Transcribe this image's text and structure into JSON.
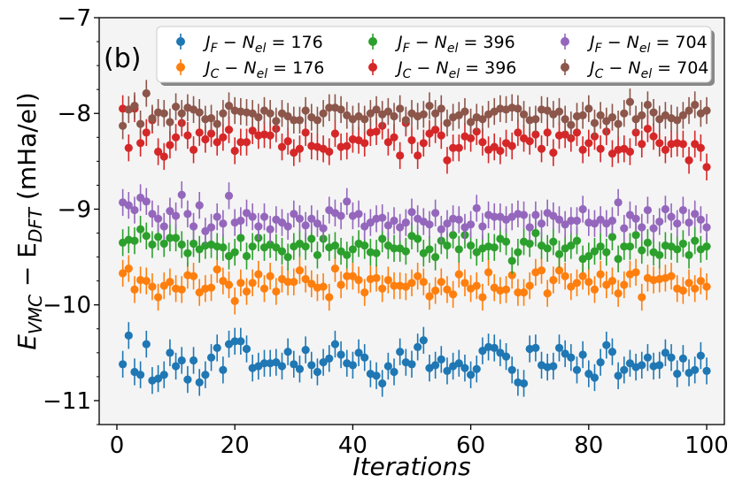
{
  "chart_data": {
    "type": "scatter",
    "panel_label": "(b)",
    "xlabel": "Iterations",
    "ylabel_main": "E",
    "ylabel_sub1": "VMC",
    "ylabel_mid": " − E",
    "ylabel_sub2": "DFT",
    "ylabel_unit": " (mHa/el)",
    "xlim": [
      -3,
      103
    ],
    "ylim": [
      -11.25,
      -7.0
    ],
    "xticks": [
      0,
      20,
      40,
      60,
      80,
      100
    ],
    "xtick_labels": [
      "0",
      "20",
      "40",
      "60",
      "80",
      "100"
    ],
    "yticks": [
      -11,
      -10,
      -9,
      -8,
      -7
    ],
    "ytick_labels": [
      "−11",
      "−10",
      "−9",
      "−8",
      "−7"
    ],
    "legend_position": "top",
    "error_bar": 0.14,
    "series": [
      {
        "name": "J_F − N_el = 176",
        "prefix": "J",
        "sub": "F",
        "suffix": " − N",
        "sub2": "el",
        "value": " = 176",
        "color": "#1f77b4",
        "values": [
          -10.62,
          -10.32,
          -10.7,
          -10.73,
          -10.41,
          -10.79,
          -10.77,
          -10.73,
          -10.5,
          -10.64,
          -10.58,
          -10.78,
          -10.58,
          -10.81,
          -10.73,
          -10.55,
          -10.45,
          -10.68,
          -10.41,
          -10.38,
          -10.38,
          -10.46,
          -10.66,
          -10.64,
          -10.61,
          -10.61,
          -10.6,
          -10.64,
          -10.49,
          -10.62,
          -10.67,
          -10.47,
          -10.63,
          -10.7,
          -10.6,
          -10.56,
          -10.41,
          -10.52,
          -10.61,
          -10.63,
          -10.5,
          -10.55,
          -10.72,
          -10.74,
          -10.82,
          -10.64,
          -10.7,
          -10.49,
          -10.6,
          -10.62,
          -10.44,
          -10.37,
          -10.66,
          -10.63,
          -10.57,
          -10.69,
          -10.64,
          -10.61,
          -10.66,
          -10.73,
          -10.67,
          -10.48,
          -10.44,
          -10.45,
          -10.5,
          -10.54,
          -10.68,
          -10.81,
          -10.82,
          -10.46,
          -10.45,
          -10.63,
          -10.65,
          -10.64,
          -10.45,
          -10.51,
          -10.55,
          -10.68,
          -10.52,
          -10.72,
          -10.76,
          -10.6,
          -10.42,
          -10.49,
          -10.74,
          -10.68,
          -10.61,
          -10.65,
          -10.63,
          -10.55,
          -10.64,
          -10.63,
          -10.5,
          -10.55,
          -10.72,
          -10.56,
          -10.71,
          -10.68,
          -10.53,
          -10.69
        ]
      },
      {
        "name": "J_C − N_el = 176",
        "prefix": "J",
        "sub": "C",
        "suffix": " − N",
        "sub2": "el",
        "value": " = 176",
        "color": "#ff7f0e",
        "values": [
          -9.67,
          -9.62,
          -9.84,
          -9.74,
          -9.75,
          -9.81,
          -9.92,
          -9.8,
          -9.76,
          -9.83,
          -9.84,
          -9.69,
          -9.7,
          -9.87,
          -9.83,
          -9.82,
          -9.63,
          -9.75,
          -9.79,
          -9.96,
          -9.77,
          -9.86,
          -9.77,
          -9.68,
          -9.83,
          -9.7,
          -9.86,
          -9.73,
          -9.76,
          -9.76,
          -9.64,
          -9.73,
          -9.78,
          -9.82,
          -9.81,
          -9.92,
          -9.62,
          -9.79,
          -9.7,
          -9.7,
          -9.74,
          -9.87,
          -9.73,
          -9.72,
          -9.83,
          -9.74,
          -9.8,
          -9.8,
          -9.81,
          -9.77,
          -9.7,
          -9.76,
          -9.91,
          -9.85,
          -9.76,
          -9.84,
          -9.89,
          -9.68,
          -9.77,
          -9.83,
          -9.8,
          -9.92,
          -9.66,
          -9.82,
          -9.85,
          -9.84,
          -9.69,
          -9.87,
          -9.87,
          -9.8,
          -9.66,
          -9.64,
          -9.88,
          -9.74,
          -9.64,
          -9.7,
          -9.81,
          -9.77,
          -9.7,
          -9.76,
          -9.84,
          -9.68,
          -9.79,
          -9.75,
          -9.88,
          -9.79,
          -9.68,
          -9.66,
          -9.92,
          -9.72,
          -9.74,
          -9.73,
          -9.72,
          -9.7,
          -9.83,
          -9.85,
          -9.77,
          -9.83,
          -9.75,
          -9.81
        ]
      },
      {
        "name": "J_F − N_el = 396",
        "prefix": "J",
        "sub": "F",
        "suffix": " − N",
        "sub2": "el",
        "value": " = 396",
        "color": "#2ca02c",
        "values": [
          -9.35,
          -9.32,
          -9.33,
          -9.21,
          -9.28,
          -9.37,
          -9.29,
          -9.36,
          -9.3,
          -9.3,
          -9.37,
          -9.46,
          -9.36,
          -9.42,
          -9.38,
          -9.37,
          -9.39,
          -9.4,
          -9.49,
          -9.45,
          -9.3,
          -9.49,
          -9.39,
          -9.3,
          -9.4,
          -9.37,
          -9.4,
          -9.44,
          -9.5,
          -9.39,
          -9.36,
          -9.39,
          -9.31,
          -9.48,
          -9.31,
          -9.4,
          -9.38,
          -9.44,
          -9.48,
          -9.42,
          -9.36,
          -9.38,
          -9.45,
          -9.46,
          -9.31,
          -9.38,
          -9.41,
          -9.41,
          -9.44,
          -9.28,
          -9.31,
          -9.46,
          -9.42,
          -9.5,
          -9.33,
          -9.38,
          -9.27,
          -9.42,
          -9.27,
          -9.38,
          -9.45,
          -9.41,
          -9.39,
          -9.4,
          -9.31,
          -9.34,
          -9.54,
          -9.45,
          -9.34,
          -9.36,
          -9.25,
          -9.38,
          -9.41,
          -9.34,
          -9.47,
          -9.41,
          -9.38,
          -9.33,
          -9.52,
          -9.49,
          -9.44,
          -9.39,
          -9.45,
          -9.29,
          -9.52,
          -9.39,
          -9.39,
          -9.27,
          -9.43,
          -9.35,
          -9.45,
          -9.48,
          -9.38,
          -9.39,
          -9.42,
          -9.36,
          -9.48,
          -9.33,
          -9.42,
          -9.39
        ]
      },
      {
        "name": "J_C − N_el = 396",
        "prefix": "J",
        "sub": "C",
        "suffix": " − N",
        "sub2": "el",
        "value": " = 396",
        "color": "#d62728",
        "values": [
          -7.95,
          -8.36,
          -7.95,
          -8.31,
          -8.2,
          -8.07,
          -8.4,
          -8.45,
          -8.33,
          -8.25,
          -8.1,
          -8.23,
          -8.38,
          -8.2,
          -8.27,
          -8.21,
          -8.3,
          -8.25,
          -8.17,
          -8.39,
          -8.3,
          -8.3,
          -8.18,
          -8.23,
          -8.22,
          -8.23,
          -8.16,
          -8.35,
          -8.29,
          -8.41,
          -8.37,
          -8.2,
          -8.34,
          -8.35,
          -8.37,
          -8.4,
          -8.21,
          -8.35,
          -8.34,
          -8.27,
          -8.28,
          -8.31,
          -8.2,
          -8.19,
          -8.13,
          -8.3,
          -8.25,
          -8.44,
          -8.1,
          -8.28,
          -8.44,
          -8.31,
          -8.21,
          -8.17,
          -8.23,
          -8.49,
          -8.36,
          -8.36,
          -8.24,
          -8.26,
          -8.19,
          -8.3,
          -8.38,
          -8.35,
          -8.39,
          -8.31,
          -8.34,
          -8.2,
          -8.26,
          -8.29,
          -8.22,
          -8.37,
          -8.2,
          -8.41,
          -8.23,
          -8.22,
          -8.26,
          -8.2,
          -8.38,
          -8.31,
          -8.24,
          -8.37,
          -8.19,
          -8.42,
          -8.38,
          -8.37,
          -8.4,
          -8.2,
          -8.32,
          -8.16,
          -8.24,
          -8.31,
          -8.38,
          -8.32,
          -8.31,
          -8.32,
          -8.49,
          -8.32,
          -8.36,
          -8.56
        ]
      },
      {
        "name": "J_F − N_el = 704",
        "prefix": "J",
        "sub": "F",
        "suffix": " − N",
        "sub2": "el",
        "value": " = 704",
        "color": "#9467bd",
        "values": [
          -8.93,
          -8.96,
          -9.01,
          -8.88,
          -8.92,
          -9.05,
          -9.1,
          -9.18,
          -9.02,
          -9.07,
          -8.85,
          -9.05,
          -9.18,
          -8.96,
          -9.23,
          -9.19,
          -9.08,
          -9.15,
          -8.86,
          -9.14,
          -9.12,
          -9.04,
          -9.08,
          -9.18,
          -9.08,
          -9.21,
          -9.11,
          -9.14,
          -9.18,
          -9.05,
          -9.1,
          -9.17,
          -9.1,
          -9.15,
          -9.2,
          -9.01,
          -9.04,
          -9.07,
          -8.92,
          -9.07,
          -9.05,
          -9.18,
          -9.14,
          -9.1,
          -9.09,
          -9.17,
          -9.12,
          -9.19,
          -9.14,
          -9.03,
          -9.1,
          -9.13,
          -9.16,
          -9.04,
          -9.21,
          -9.15,
          -9.1,
          -9.11,
          -9.19,
          -9.16,
          -8.99,
          -9.18,
          -9.06,
          -9.08,
          -9.08,
          -9.11,
          -9.08,
          -9.05,
          -9.06,
          -9.19,
          -9.06,
          -9.15,
          -9.04,
          -9.07,
          -9.11,
          -9.16,
          -9.12,
          -9.12,
          -9.0,
          -9.14,
          -9.15,
          -9.11,
          -9.15,
          -9.12,
          -8.93,
          -9.2,
          -9.06,
          -9.1,
          -9.19,
          -9.01,
          -9.2,
          -9.13,
          -9.0,
          -9.08,
          -9.15,
          -9.01,
          -9.14,
          -9.05,
          -9.11,
          -9.19
        ]
      },
      {
        "name": "J_C − N_el = 704",
        "prefix": "J",
        "sub": "C",
        "suffix": " − N",
        "sub2": "el",
        "value": " = 704",
        "color": "#8c564b",
        "values": [
          -8.13,
          -7.96,
          -7.92,
          -8.11,
          -7.79,
          -8.05,
          -7.99,
          -8.0,
          -8.09,
          -7.93,
          -8.0,
          -7.94,
          -7.96,
          -7.99,
          -8.06,
          -8.05,
          -8.11,
          -8.0,
          -7.92,
          -7.97,
          -7.98,
          -7.99,
          -8.0,
          -8.04,
          -7.97,
          -8.0,
          -8.08,
          -8.0,
          -8.03,
          -8.07,
          -8.07,
          -7.97,
          -8.04,
          -8.07,
          -8.0,
          -7.94,
          -7.94,
          -7.96,
          -8.02,
          -8.06,
          -8.03,
          -8.06,
          -8.0,
          -7.96,
          -8.01,
          -7.98,
          -8.03,
          -7.95,
          -8.07,
          -8.0,
          -8.03,
          -8.01,
          -7.92,
          -8.0,
          -7.95,
          -8.1,
          -8.04,
          -8.02,
          -7.98,
          -8.09,
          -8.04,
          -8.06,
          -8.01,
          -7.98,
          -7.95,
          -7.96,
          -7.94,
          -7.95,
          -8.01,
          -8.07,
          -8.06,
          -7.96,
          -7.97,
          -8.01,
          -7.98,
          -8.06,
          -8.12,
          -8.03,
          -8.02,
          -7.95,
          -8.1,
          -8.02,
          -8.08,
          -8.04,
          -8.11,
          -8.0,
          -7.88,
          -8.06,
          -8.02,
          -7.91,
          -7.99,
          -8.06,
          -8.02,
          -8.05,
          -8.07,
          -8.02,
          -7.97,
          -7.91,
          -8.0,
          -7.97
        ]
      }
    ]
  }
}
